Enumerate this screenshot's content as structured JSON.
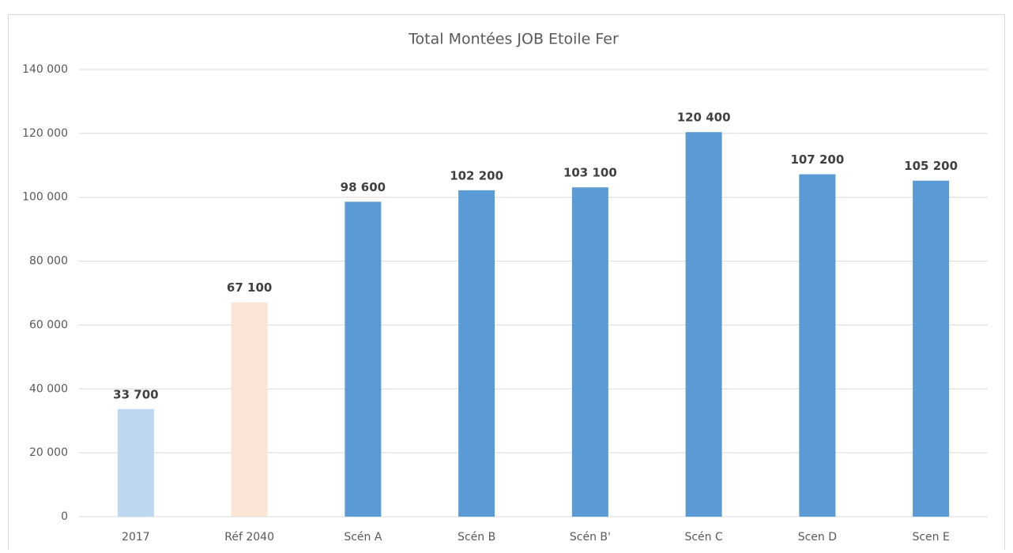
{
  "chart_data": {
    "type": "bar",
    "title": "Total Montées JOB Etoile Fer",
    "categories": [
      "2017",
      "Réf 2040",
      "Scén A",
      "Scén B",
      "Scén B'",
      "Scén C",
      "Scen D",
      "Scen E"
    ],
    "values": [
      33700,
      67100,
      98600,
      102200,
      103100,
      120400,
      107200,
      105200
    ],
    "value_labels": [
      "33 700",
      "67 100",
      "98 600",
      "102 200",
      "103 100",
      "120 400",
      "107 200",
      "105 200"
    ],
    "colors": [
      "#bdd7ee",
      "#fbe5d6",
      "#5b9bd5",
      "#5b9bd5",
      "#5b9bd5",
      "#5b9bd5",
      "#5b9bd5",
      "#5b9bd5"
    ],
    "ylim": [
      0,
      140000
    ],
    "yticks": [
      {
        "value": 0,
        "label": "0"
      },
      {
        "value": 20000,
        "label": "20 000"
      },
      {
        "value": 40000,
        "label": "40 000"
      },
      {
        "value": 60000,
        "label": "60 000"
      },
      {
        "value": 80000,
        "label": "80 000"
      },
      {
        "value": 100000,
        "label": "100 000"
      },
      {
        "value": 120000,
        "label": "120 000"
      },
      {
        "value": 140000,
        "label": "140 000"
      }
    ],
    "grid": true
  }
}
